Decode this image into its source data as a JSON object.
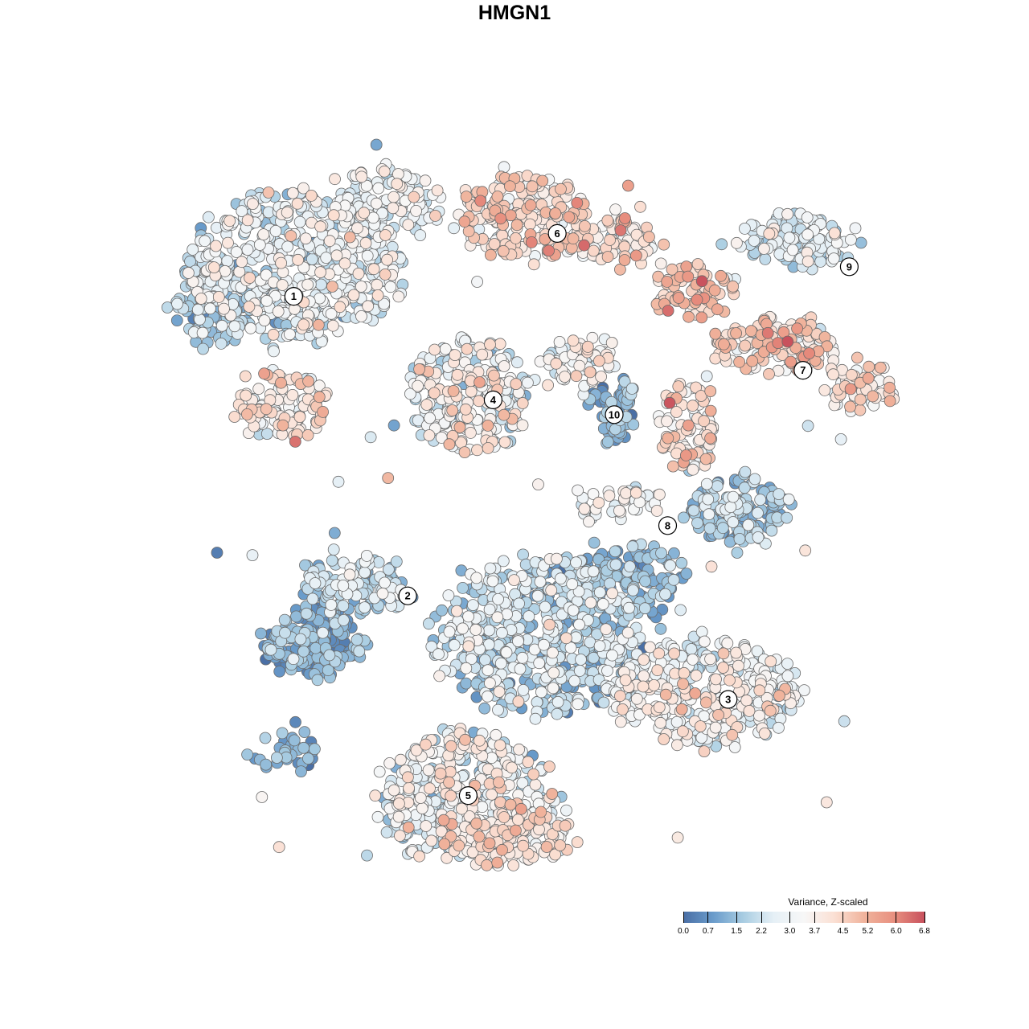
{
  "chart_data": {
    "type": "scatter",
    "title": "HMGN1",
    "xlabel": "",
    "ylabel": "",
    "grid": false,
    "legend": {
      "title": "Variance, Z-scaled",
      "placement": "bottom-right",
      "range": [
        0.0,
        6.8
      ],
      "ticks": [
        "0.0",
        "0.7",
        "1.5",
        "2.2",
        "3.0",
        "3.7",
        "4.5",
        "5.2",
        "6.0",
        "6.8"
      ],
      "colors": [
        "#4a6fa5",
        "#6a9ccb",
        "#a9cde2",
        "#e6f0f6",
        "#f7f7f7",
        "#fbe0d4",
        "#f0b39c",
        "#e88f7f",
        "#c8515d"
      ]
    },
    "clusters": [
      {
        "id": "1",
        "x": -6.2,
        "y": 5.9,
        "score": 2.6
      },
      {
        "id": "2",
        "x": -3.0,
        "y": -2.2,
        "score": 1.4
      },
      {
        "id": "3",
        "x": 6.0,
        "y": -5.0,
        "score": 3.5
      },
      {
        "id": "4",
        "x": -0.6,
        "y": 3.1,
        "score": 3.3
      },
      {
        "id": "5",
        "x": -1.3,
        "y": -7.6,
        "score": 3.2
      },
      {
        "id": "6",
        "x": 1.2,
        "y": 7.6,
        "score": 4.2
      },
      {
        "id": "7",
        "x": 8.1,
        "y": 3.9,
        "score": 4.2
      },
      {
        "id": "8",
        "x": 4.3,
        "y": -0.3,
        "score": 3.4
      },
      {
        "id": "9",
        "x": 9.4,
        "y": 6.7,
        "score": 2.4
      },
      {
        "id": "10",
        "x": 2.8,
        "y": 2.7,
        "score": 1.2
      }
    ]
  }
}
